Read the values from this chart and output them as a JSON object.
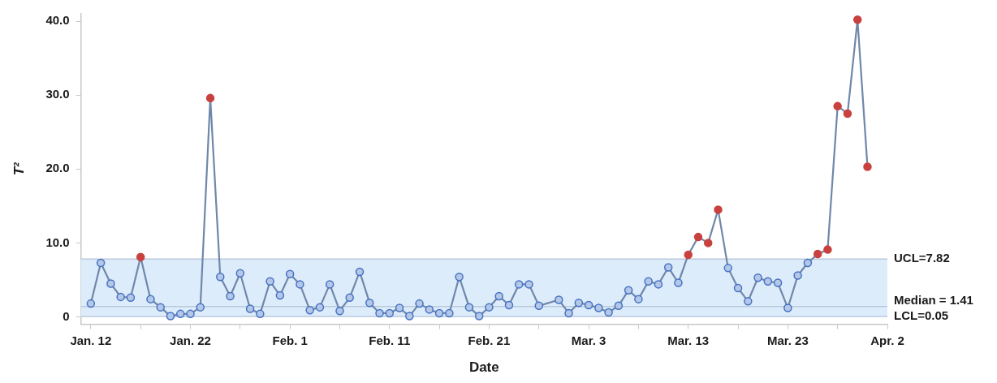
{
  "chart_data": {
    "type": "line",
    "xlabel": "Date",
    "ylabel": "T²",
    "x": [
      "--01-12",
      "--01-13",
      "--01-14",
      "--01-15",
      "--01-16",
      "--01-17",
      "--01-18",
      "--01-19",
      "--01-20",
      "--01-21",
      "--01-22",
      "--01-23",
      "--01-24",
      "--01-25",
      "--01-26",
      "--01-27",
      "--01-28",
      "--01-29",
      "--01-30",
      "--01-31",
      "--02-01",
      "--02-02",
      "--02-03",
      "--02-04",
      "--02-05",
      "--02-06",
      "--02-07",
      "--02-08",
      "--02-09",
      "--02-10",
      "--02-11",
      "--02-12",
      "--02-13",
      "--02-14",
      "--02-15",
      "--02-16",
      "--02-17",
      "--02-18",
      "--02-19",
      "--02-20",
      "--02-21",
      "--02-22",
      "--02-23",
      "--02-24",
      "--02-25",
      "--02-26",
      "--02-28",
      "--03-01",
      "--03-02",
      "--03-03",
      "--03-04",
      "--03-05",
      "--03-06",
      "--03-07",
      "--03-08",
      "--03-09",
      "--03-10",
      "--03-11",
      "--03-12",
      "--03-13",
      "--03-14",
      "--03-15",
      "--03-16",
      "--03-17",
      "--03-18",
      "--03-19",
      "--03-20",
      "--03-21",
      "--03-22",
      "--03-23",
      "--03-24",
      "--03-25",
      "--03-26",
      "--03-27",
      "--03-28",
      "--03-29",
      "--03-30",
      "--03-31"
    ],
    "series": [
      {
        "color": "#6f87a9",
        "values": [
          1.8,
          7.3,
          4.5,
          2.7,
          2.6,
          8.1,
          2.4,
          1.3,
          0.1,
          0.4,
          0.4,
          1.3,
          29.6,
          5.4,
          2.8,
          5.9,
          1.1,
          0.4,
          4.8,
          2.9,
          5.8,
          4.4,
          0.9,
          1.3,
          4.4,
          0.8,
          2.6,
          6.1,
          1.9,
          0.5,
          0.5,
          1.2,
          0.1,
          1.8,
          1.0,
          0.5,
          0.5,
          5.4,
          1.3,
          0.1,
          1.3,
          2.8,
          1.6,
          4.4,
          4.4,
          1.5,
          2.3,
          0.5,
          1.9,
          1.6,
          1.2,
          0.6,
          1.5,
          3.6,
          2.4,
          4.8,
          4.4,
          6.7,
          4.6,
          8.4,
          10.8,
          10.0,
          14.5,
          6.6,
          3.9,
          2.1,
          5.3,
          4.8,
          4.6,
          1.2,
          5.6,
          7.3,
          8.5,
          9.1,
          28.5,
          27.5,
          40.2,
          20.3
        ],
        "colors": [
          "#4472c4",
          "#4472c4",
          "#4472c4",
          "#4472c4",
          "#4472c4",
          "#c9413f",
          "#4472c4",
          "#4472c4",
          "#4472c4",
          "#4472c4",
          "#4472c4",
          "#4472c4",
          "#c9413f",
          "#4472c4",
          "#4472c4",
          "#4472c4",
          "#4472c4",
          "#4472c4",
          "#4472c4",
          "#4472c4",
          "#4472c4",
          "#4472c4",
          "#4472c4",
          "#4472c4",
          "#4472c4",
          "#4472c4",
          "#4472c4",
          "#4472c4",
          "#4472c4",
          "#4472c4",
          "#4472c4",
          "#4472c4",
          "#4472c4",
          "#4472c4",
          "#4472c4",
          "#4472c4",
          "#4472c4",
          "#4472c4",
          "#4472c4",
          "#4472c4",
          "#4472c4",
          "#4472c4",
          "#4472c4",
          "#4472c4",
          "#4472c4",
          "#4472c4",
          "#4472c4",
          "#4472c4",
          "#4472c4",
          "#4472c4",
          "#4472c4",
          "#4472c4",
          "#4472c4",
          "#4472c4",
          "#4472c4",
          "#4472c4",
          "#4472c4",
          "#4472c4",
          "#4472c4",
          "#c9413f",
          "#c9413f",
          "#c9413f",
          "#c9413f",
          "#4472c4",
          "#4472c4",
          "#4472c4",
          "#4472c4",
          "#4472c4",
          "#4472c4",
          "#4472c4",
          "#4472c4",
          "#4472c4",
          "#c9413f",
          "#c9413f",
          "#c9413f",
          "#c9413f",
          "#c9413f",
          "#c9413f"
        ]
      }
    ],
    "xlim": [
      "--01-11",
      "--04-02"
    ],
    "xticks": [
      {
        "value": "--01-12",
        "label": "Jan. 12"
      },
      {
        "value": "--01-17",
        "label": null
      },
      {
        "value": "--01-22",
        "label": "Jan. 22"
      },
      {
        "value": "--01-27",
        "label": null
      },
      {
        "value": "--02-01",
        "label": "Feb. 1"
      },
      {
        "value": "--02-06",
        "label": null
      },
      {
        "value": "--02-11",
        "label": "Feb. 11"
      },
      {
        "value": "--02-16",
        "label": null
      },
      {
        "value": "--02-21",
        "label": "Feb. 21"
      },
      {
        "value": "--02-26",
        "label": null
      },
      {
        "value": "--03-03",
        "label": "Mar. 3"
      },
      {
        "value": "--03-08",
        "label": null
      },
      {
        "value": "--03-13",
        "label": "Mar. 13"
      },
      {
        "value": "--03-18",
        "label": null
      },
      {
        "value": "--03-23",
        "label": "Mar. 23"
      },
      {
        "value": "--03-28",
        "label": null
      },
      {
        "value": "--04-02",
        "label": "Apr. 2"
      }
    ],
    "ylim": [
      -1,
      41
    ],
    "yticks": [
      0,
      {
        "value": 10,
        "label": "10.0"
      },
      {
        "value": 20,
        "label": "20.0"
      },
      {
        "value": 30,
        "label": "30.0"
      },
      {
        "value": 40,
        "label": "40.0"
      }
    ],
    "bands": [
      {
        "axis": "y",
        "from": 0.05,
        "to": 7.82,
        "color": "#ddecfb"
      }
    ],
    "ref_lines": [
      {
        "axis": "y",
        "value": 7.82,
        "label": "UCL=7.82",
        "color": "#b9c9dd"
      },
      {
        "axis": "y",
        "value": 1.41,
        "label": "Median = 1.41",
        "color": "#b9c9dd"
      },
      {
        "axis": "y",
        "value": 0.05,
        "label": "LCL=0.05",
        "color": "#b9c9dd"
      }
    ],
    "grid": false,
    "legend": false,
    "marker": "circle",
    "line_style": "solid"
  }
}
